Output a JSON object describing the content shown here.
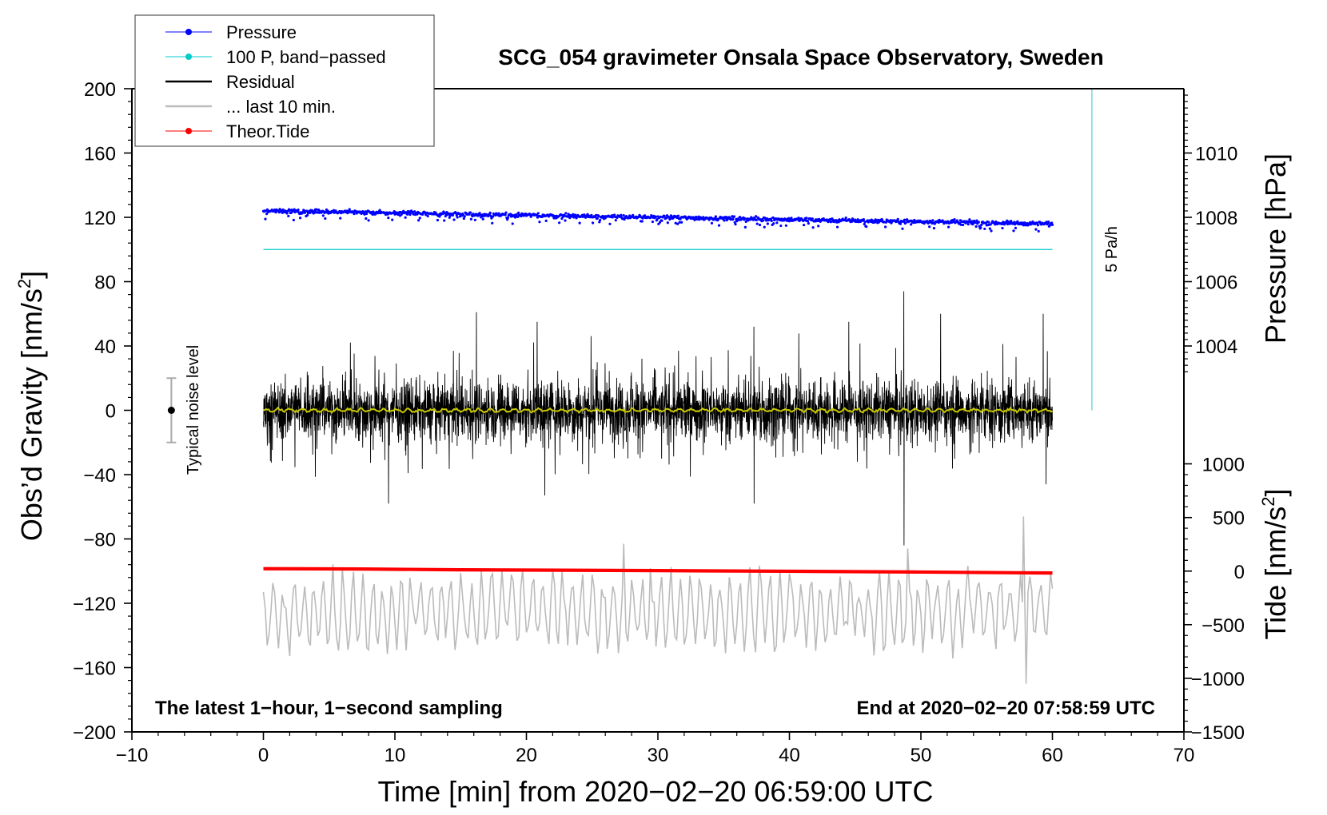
{
  "chart_data": {
    "type": "line",
    "title": "SCG_054 gravimeter Onsala Space Observatory, Sweden",
    "xlabel": "Time [min] from 2020−02−20 06:59:00 UTC",
    "ylabel_left": "Obs’d Gravity [nm/s²]",
    "ylabel_left_main": "Obs’d Gravity [nm/s",
    "ylabel_right_pressure": "Pressure [hPa]",
    "ylabel_right_tide": "Tide [nm/s²]",
    "ylabel_right_tide_main": "Tide [nm/s",
    "superscript": "2",
    "ylabel_close": "]",
    "xlim": [
      -10,
      70
    ],
    "ylim": [
      -200,
      200
    ],
    "x_ticks": [
      -10,
      0,
      10,
      20,
      30,
      40,
      50,
      60,
      70
    ],
    "x_tick_labels": [
      "−10",
      "0",
      "10",
      "20",
      "30",
      "40",
      "50",
      "60",
      "70"
    ],
    "y_ticks": [
      200,
      160,
      120,
      80,
      40,
      0,
      -40,
      -80,
      -120,
      -160,
      -200
    ],
    "y_tick_labels": [
      "200",
      "160",
      "120",
      "80",
      "40",
      "0",
      "−40",
      "−80",
      "−120",
      "−160",
      "−200"
    ],
    "pressure_axis": {
      "ticks": [
        1010,
        1008,
        1006,
        1004
      ],
      "tick_labels": [
        "1010",
        "1008",
        "1006",
        "1004"
      ],
      "gravity_equivalent": [
        160,
        120,
        80,
        40
      ]
    },
    "tide_axis": {
      "ticks": [
        1000,
        500,
        0,
        -500,
        -1000,
        -1500
      ],
      "tick_labels": [
        "1000",
        "500",
        "0",
        "−500",
        "−1000",
        "−1500"
      ],
      "gravity_equivalent": [
        -33.3,
        -66.7,
        -100,
        -133.3,
        -166.7,
        -200
      ]
    },
    "annotations": {
      "left_note": "The latest 1−hour, 1−second sampling",
      "right_note": "End at 2020−02−20 07:58:59 UTC",
      "noise_label": "Typical noise level",
      "noise_bar": {
        "x": -7,
        "center": 0,
        "low": -20,
        "high": 20
      },
      "rate_label": "5 Pa/h",
      "rate_bar": {
        "x": 63,
        "from": 0,
        "to": 200
      }
    },
    "legend": [
      {
        "label": "Pressure",
        "color": "#0000ff",
        "marker": true
      },
      {
        "label": "100 P, band−passed",
        "color": "#00cccc",
        "marker": true
      },
      {
        "label": "Residual",
        "color": "#000000",
        "marker": false
      },
      {
        "label": "... last 10 min.",
        "color": "#bbbbbb",
        "marker": false
      },
      {
        "label": "Theor.Tide",
        "color": "#ff0000",
        "marker": true
      }
    ],
    "series": [
      {
        "name": "Pressure",
        "color": "#0000ff",
        "x_range": [
          0,
          60
        ],
        "start": 124,
        "end": 116,
        "spread": 3,
        "note": "approx. 1008.2 to 1007.8 hPa on right scale"
      },
      {
        "name": "100 P, band−passed",
        "color": "#00cccc",
        "x": [
          0,
          60
        ],
        "values": [
          100,
          100
        ]
      },
      {
        "name": "Residual",
        "color": "#000000",
        "x_range": [
          0,
          60
        ],
        "center": 0,
        "typical_amplitude": 30,
        "peaks": [
          {
            "x": 48.7,
            "value": 74
          },
          {
            "x": 48.7,
            "value": -84
          },
          {
            "x": 37.3,
            "value": 52
          },
          {
            "x": 37.3,
            "value": -58
          },
          {
            "x": 59.3,
            "value": 60
          },
          {
            "x": 59.5,
            "value": -46
          },
          {
            "x": 16.2,
            "value": 61
          },
          {
            "x": 9.5,
            "value": -58
          },
          {
            "x": 21.4,
            "value": -53
          },
          {
            "x": 20.8,
            "value": 55
          },
          {
            "x": 51.5,
            "value": 60
          },
          {
            "x": 44.5,
            "value": 55
          }
        ]
      },
      {
        "name": "Residual (smoothed)",
        "color": "#cccc00",
        "x": [
          0,
          60
        ],
        "values": [
          0,
          0
        ]
      },
      {
        "name": "... last 10 min.",
        "color": "#bbbbbb",
        "x_range": [
          0,
          60
        ],
        "center": -125,
        "typical_amplitude": 20,
        "peaks": [
          {
            "x": 57.8,
            "value": -66
          },
          {
            "x": 58.0,
            "value": -170
          },
          {
            "x": 27.4,
            "value": -83
          },
          {
            "x": 49.0,
            "value": -86
          }
        ]
      },
      {
        "name": "Theor.Tide",
        "color": "#ff0000",
        "x": [
          0,
          7.5,
          15,
          30,
          40,
          50,
          60
        ],
        "values": [
          -98.5,
          -98.7,
          -99.2,
          -99.7,
          -100.1,
          -100.6,
          -101.2
        ]
      }
    ]
  },
  "colors": {
    "pressure": "#0000ff",
    "bandpassed": "#00cccc",
    "residual": "#000000",
    "smoothed": "#c8c800",
    "last10": "#bbbbbb",
    "tide": "#ff0000"
  }
}
